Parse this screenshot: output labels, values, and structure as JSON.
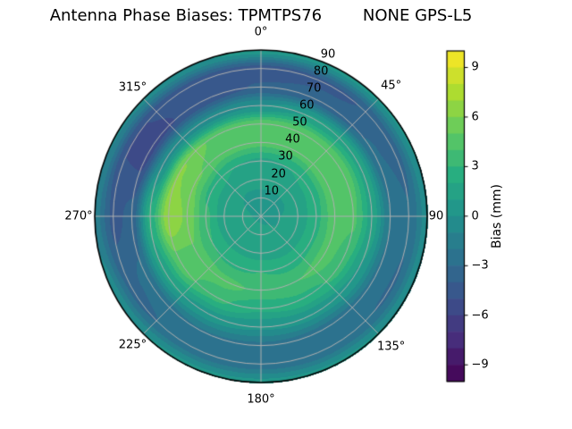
{
  "title": "Antenna Phase Biases: TPMTPS76        NONE GPS-L5",
  "colors": {
    "background": "#ffffff",
    "text": "#000000",
    "grid": "#b0b0b0",
    "outline": "#000000",
    "viridis_anchors": [
      "#440154",
      "#472d7b",
      "#3b518b",
      "#2c728e",
      "#21918c",
      "#28ae80",
      "#5ec962",
      "#addc30",
      "#fde725"
    ]
  },
  "polar_axes": {
    "azimuth_ticks": [
      {
        "label": "0°",
        "deg": 0
      },
      {
        "label": "45°",
        "deg": 45
      },
      {
        "label": "90",
        "deg": 90
      },
      {
        "label": "135°",
        "deg": 135
      },
      {
        "label": "180°",
        "deg": 180
      },
      {
        "label": "225°",
        "deg": 225
      },
      {
        "label": "270°",
        "deg": 270
      },
      {
        "label": "315°",
        "deg": 315
      }
    ],
    "radial_ticks": [
      {
        "label": "10",
        "value": 10
      },
      {
        "label": "20",
        "value": 20
      },
      {
        "label": "30",
        "value": 30
      },
      {
        "label": "40",
        "value": 40
      },
      {
        "label": "50",
        "value": 50
      },
      {
        "label": "60",
        "value": 60
      },
      {
        "label": "70",
        "value": 70
      },
      {
        "label": "80",
        "value": 80
      },
      {
        "label": "90",
        "value": 90
      }
    ],
    "radial_label_azimuth_deg": 22.5,
    "r_max": 90
  },
  "colorbar": {
    "label": "Bias (mm)",
    "vmin": -10,
    "vmax": 10,
    "bands": 20,
    "ticks": [
      {
        "label": "9",
        "value": 9
      },
      {
        "label": "6",
        "value": 6
      },
      {
        "label": "3",
        "value": 3
      },
      {
        "label": "0",
        "value": 0
      },
      {
        "label": "−3",
        "value": -3
      },
      {
        "label": "−6",
        "value": -6
      },
      {
        "label": "−9",
        "value": -9
      }
    ]
  },
  "chart_data": {
    "type": "polar_contour_filled",
    "title": "Antenna Phase Biases: TPMTPS76        NONE GPS-L5",
    "colormap": "viridis",
    "colorbar_label": "Bias (mm)",
    "units": "mm",
    "levels": {
      "min": -10,
      "max": 10,
      "step": 1
    },
    "azimuth_deg": [
      0,
      30,
      60,
      90,
      120,
      150,
      180,
      210,
      240,
      270,
      300,
      330
    ],
    "zenith_deg": [
      0,
      10,
      20,
      30,
      40,
      50,
      60,
      70,
      80,
      90
    ],
    "bias_mm": [
      [
        0.9,
        0.9,
        1.1,
        1.8,
        4.3,
        4.7,
        0.0,
        -3.9,
        -4.5,
        0.5
      ],
      [
        0.9,
        0.9,
        1.1,
        2.0,
        4.4,
        4.9,
        1.2,
        -3.6,
        -4.2,
        0.4
      ],
      [
        0.9,
        0.9,
        1.2,
        2.4,
        4.7,
        4.8,
        1.7,
        -2.9,
        -3.5,
        0.2
      ],
      [
        0.9,
        1.0,
        1.3,
        2.8,
        4.7,
        4.2,
        1.6,
        -2.0,
        -2.9,
        -0.4
      ],
      [
        0.9,
        1.0,
        1.4,
        2.9,
        4.5,
        3.4,
        0.9,
        -2.3,
        -3.1,
        0.0
      ],
      [
        0.9,
        1.1,
        1.5,
        2.7,
        4.0,
        2.7,
        0.3,
        -2.5,
        -2.7,
        0.3
      ],
      [
        0.9,
        1.2,
        1.6,
        3.0,
        3.8,
        2.1,
        0.1,
        -2.3,
        -2.5,
        0.4
      ],
      [
        0.9,
        1.3,
        1.7,
        2.9,
        4.3,
        3.3,
        0.6,
        -2.1,
        -2.7,
        0.3
      ],
      [
        0.9,
        1.3,
        1.6,
        3.0,
        4.8,
        4.6,
        1.4,
        -2.7,
        -3.3,
        -0.3
      ],
      [
        0.9,
        1.1,
        1.4,
        3.2,
        5.8,
        6.9,
        2.4,
        -3.7,
        -4.3,
        -1.5
      ],
      [
        0.9,
        1.0,
        1.2,
        2.6,
        5.1,
        6.1,
        -0.2,
        -5.4,
        -5.1,
        -0.9
      ],
      [
        0.9,
        0.9,
        1.1,
        2.0,
        4.4,
        4.8,
        -0.5,
        -4.8,
        -4.7,
        -0.3
      ]
    ]
  }
}
